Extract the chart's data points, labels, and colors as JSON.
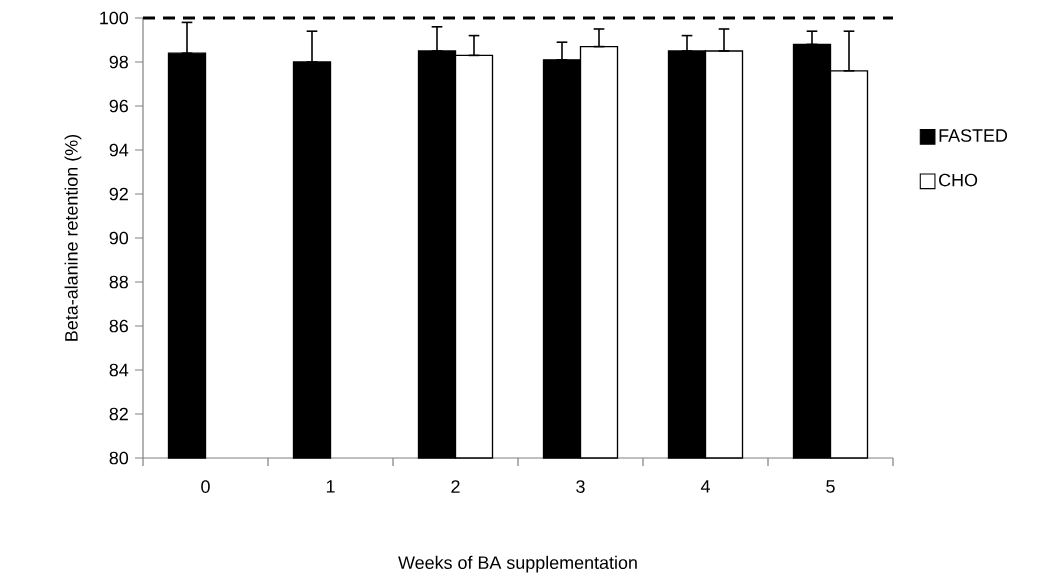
{
  "chart_data": {
    "type": "bar",
    "xlabel": "Weeks of BA supplementation",
    "ylabel": "Beta-alanine retention (%)",
    "categories": [
      "0",
      "1",
      "2",
      "3",
      "4",
      "5"
    ],
    "ylim": [
      80,
      100
    ],
    "yticks": [
      80,
      82,
      84,
      86,
      88,
      90,
      92,
      94,
      96,
      98,
      100
    ],
    "legend": "right",
    "grid": false,
    "ref_lines": [
      {
        "axis": "y",
        "value": 100,
        "line_style": "dashed",
        "color": "#000000"
      }
    ],
    "series": [
      {
        "name": "FASTED",
        "color": "#000000",
        "values": [
          98.4,
          98.0,
          98.5,
          98.1,
          98.5,
          98.8
        ],
        "errors": [
          [
            98.4,
            99.8
          ],
          [
            98.0,
            99.4
          ],
          [
            98.5,
            99.6
          ],
          [
            98.1,
            98.9
          ],
          [
            98.5,
            99.2
          ],
          [
            98.8,
            99.4
          ]
        ]
      },
      {
        "name": "CHO",
        "color": "#ffffff",
        "values": [
          null,
          null,
          98.3,
          98.7,
          98.5,
          97.6
        ],
        "errors": [
          null,
          null,
          [
            98.3,
            99.2
          ],
          [
            98.7,
            99.5
          ],
          [
            98.5,
            99.5
          ],
          [
            97.6,
            99.4
          ]
        ]
      }
    ]
  }
}
